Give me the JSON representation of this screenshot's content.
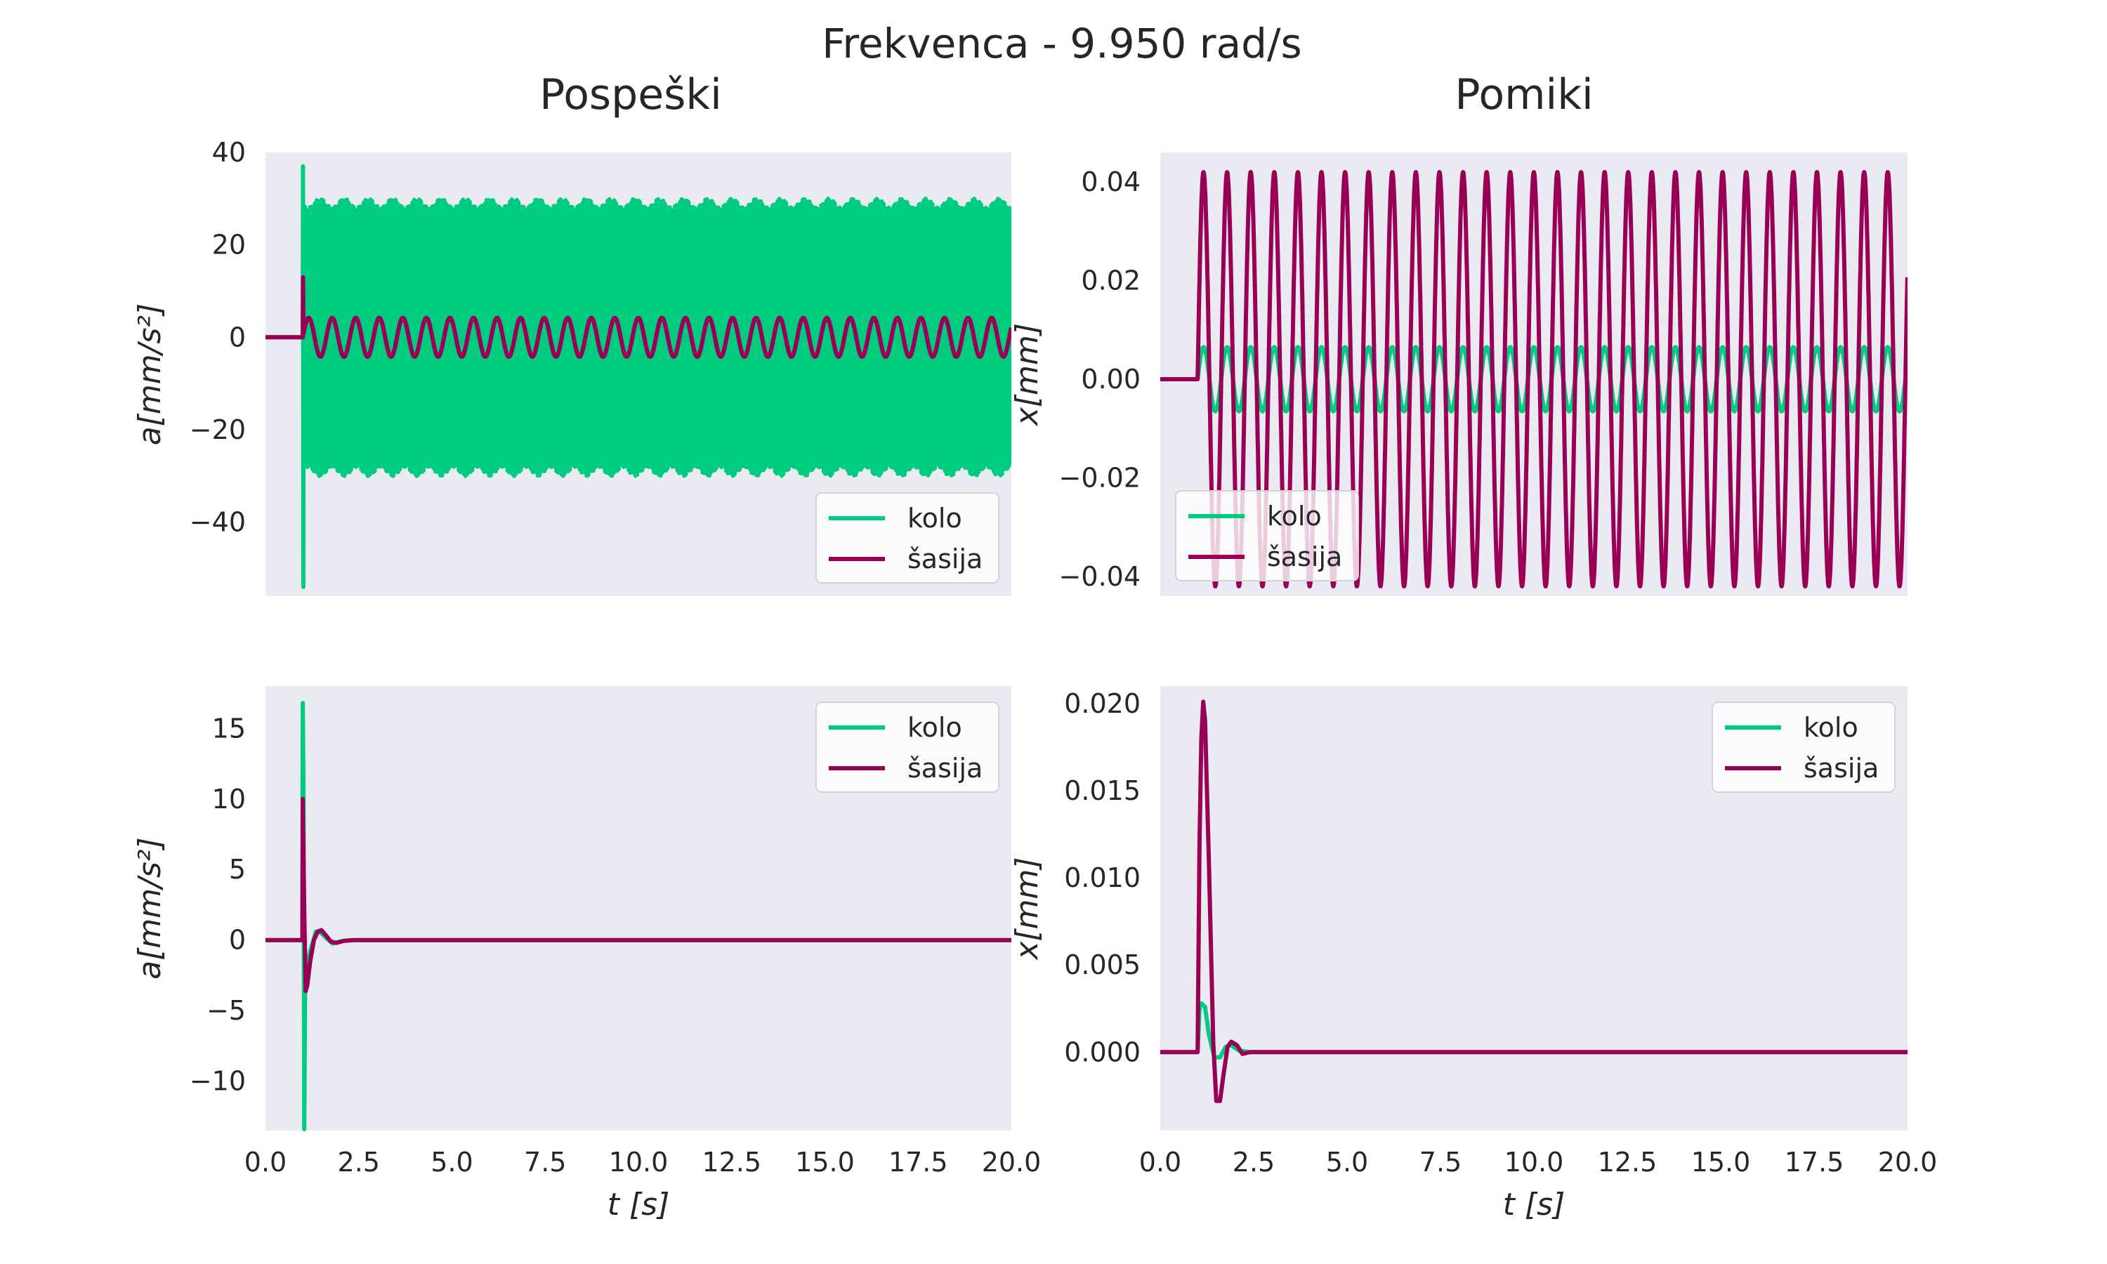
{
  "figure": {
    "title": "Frekvenca - 9.950 rad/s",
    "column_titles": [
      "Pospeški",
      "Pomiki"
    ]
  },
  "colors": {
    "kolo": "#00cc80",
    "sasija": "#990055",
    "plot_background": "#eaeaf2"
  },
  "legend_labels": [
    "kolo",
    "šasija"
  ],
  "chart_data": [
    {
      "type": "line",
      "title": "Pospeški",
      "xlabel": "t [s]",
      "ylabel": "a[mm/s²]",
      "xlim": [
        0,
        20
      ],
      "ylim": [
        -56,
        40
      ],
      "xticks": [],
      "yticks": [
        "−40",
        "−20",
        "0",
        "20",
        "40"
      ],
      "ytick_values": [
        -40,
        -20,
        0,
        20,
        40
      ],
      "grid": false,
      "legend": "lower-right",
      "series": [
        {
          "name": "kolo",
          "kind": "steady",
          "values": {
            "start": 1.0,
            "amplitude": 29,
            "envelope_variation": 1,
            "spike_max": 37,
            "spike_min": -54
          }
        },
        {
          "name": "šasija",
          "kind": "steady",
          "values": {
            "start": 1.0,
            "amplitude": 4.2,
            "spike_max": 13
          }
        }
      ]
    },
    {
      "type": "line",
      "title": "Pomiki",
      "xlabel": "t [s]",
      "ylabel": "x[mm]",
      "xlim": [
        0,
        20
      ],
      "ylim": [
        -0.044,
        0.046
      ],
      "xticks": [],
      "yticks": [
        "−0.04",
        "−0.02",
        "0.00",
        "0.02",
        "0.04"
      ],
      "ytick_values": [
        -0.04,
        -0.02,
        0,
        0.02,
        0.04
      ],
      "grid": false,
      "legend": "lower-left",
      "series": [
        {
          "name": "kolo",
          "kind": "steady",
          "values": {
            "start": 1.0,
            "amplitude": 0.0065
          }
        },
        {
          "name": "šasija",
          "kind": "steady",
          "values": {
            "start": 1.0,
            "amplitude": 0.042
          }
        }
      ]
    },
    {
      "type": "line",
      "title": "",
      "xlabel": "t [s]",
      "ylabel": "a[mm/s²]",
      "xlim": [
        0,
        20
      ],
      "ylim": [
        -13.5,
        18
      ],
      "xticks": [
        "0.0",
        "2.5",
        "5.0",
        "7.5",
        "10.0",
        "12.5",
        "15.0",
        "17.5",
        "20.0"
      ],
      "xtick_values": [
        0,
        2.5,
        5,
        7.5,
        10,
        12.5,
        15,
        17.5,
        20
      ],
      "yticks": [
        "−10",
        "−5",
        "0",
        "5",
        "10",
        "15"
      ],
      "ytick_values": [
        -10,
        -5,
        0,
        5,
        10,
        15
      ],
      "grid": false,
      "legend": "upper-right",
      "series": [
        {
          "name": "kolo",
          "kind": "transient",
          "x": [
            0,
            0.99,
            1.0,
            1.02,
            1.04,
            1.06,
            1.1,
            1.2,
            1.35,
            1.5,
            1.65,
            1.8,
            2.0,
            2.3,
            20
          ],
          "y": [
            0,
            0,
            16.8,
            10,
            -13.4,
            -4,
            -2,
            -0.8,
            0.6,
            0.5,
            0.1,
            -0.25,
            -0.1,
            0,
            0
          ]
        },
        {
          "name": "šasija",
          "kind": "transient",
          "x": [
            0,
            0.99,
            1.0,
            1.04,
            1.08,
            1.12,
            1.2,
            1.3,
            1.4,
            1.5,
            1.6,
            1.75,
            1.9,
            2.1,
            2.4,
            20
          ],
          "y": [
            0,
            0,
            10,
            2,
            -3.6,
            -3.2,
            -1.5,
            0,
            0.6,
            0.7,
            0.4,
            -0.1,
            -0.2,
            -0.05,
            0,
            0
          ]
        }
      ]
    },
    {
      "type": "line",
      "title": "",
      "xlabel": "t [s]",
      "ylabel": "x[mm]",
      "xlim": [
        0,
        20
      ],
      "ylim": [
        -0.0045,
        0.021
      ],
      "xticks": [
        "0.0",
        "2.5",
        "5.0",
        "7.5",
        "10.0",
        "12.5",
        "15.0",
        "17.5",
        "20.0"
      ],
      "xtick_values": [
        0,
        2.5,
        5,
        7.5,
        10,
        12.5,
        15,
        17.5,
        20
      ],
      "yticks": [
        "0.000",
        "0.005",
        "0.010",
        "0.015",
        "0.020"
      ],
      "ytick_values": [
        0,
        0.005,
        0.01,
        0.015,
        0.02
      ],
      "grid": false,
      "legend": "upper-right",
      "series": [
        {
          "name": "kolo",
          "kind": "transient",
          "x": [
            0,
            1.0,
            1.05,
            1.1,
            1.2,
            1.3,
            1.45,
            1.6,
            1.75,
            1.9,
            2.1,
            2.4,
            20
          ],
          "y": [
            0,
            0,
            0.0025,
            0.0028,
            0.0026,
            0.001,
            -0.0003,
            -0.0003,
            0.0003,
            0.0004,
            0.0001,
            0,
            0
          ]
        },
        {
          "name": "šasija",
          "kind": "transient",
          "x": [
            0,
            1.0,
            1.05,
            1.1,
            1.15,
            1.2,
            1.3,
            1.42,
            1.5,
            1.6,
            1.7,
            1.8,
            1.9,
            2.05,
            2.2,
            2.4,
            2.6,
            20
          ],
          "y": [
            0,
            0,
            0.012,
            0.018,
            0.0201,
            0.019,
            0.011,
            0.0005,
            -0.0028,
            -0.0028,
            -0.0012,
            0.0003,
            0.0006,
            0.0004,
            -0.0001,
            0,
            0,
            0
          ]
        }
      ]
    }
  ]
}
